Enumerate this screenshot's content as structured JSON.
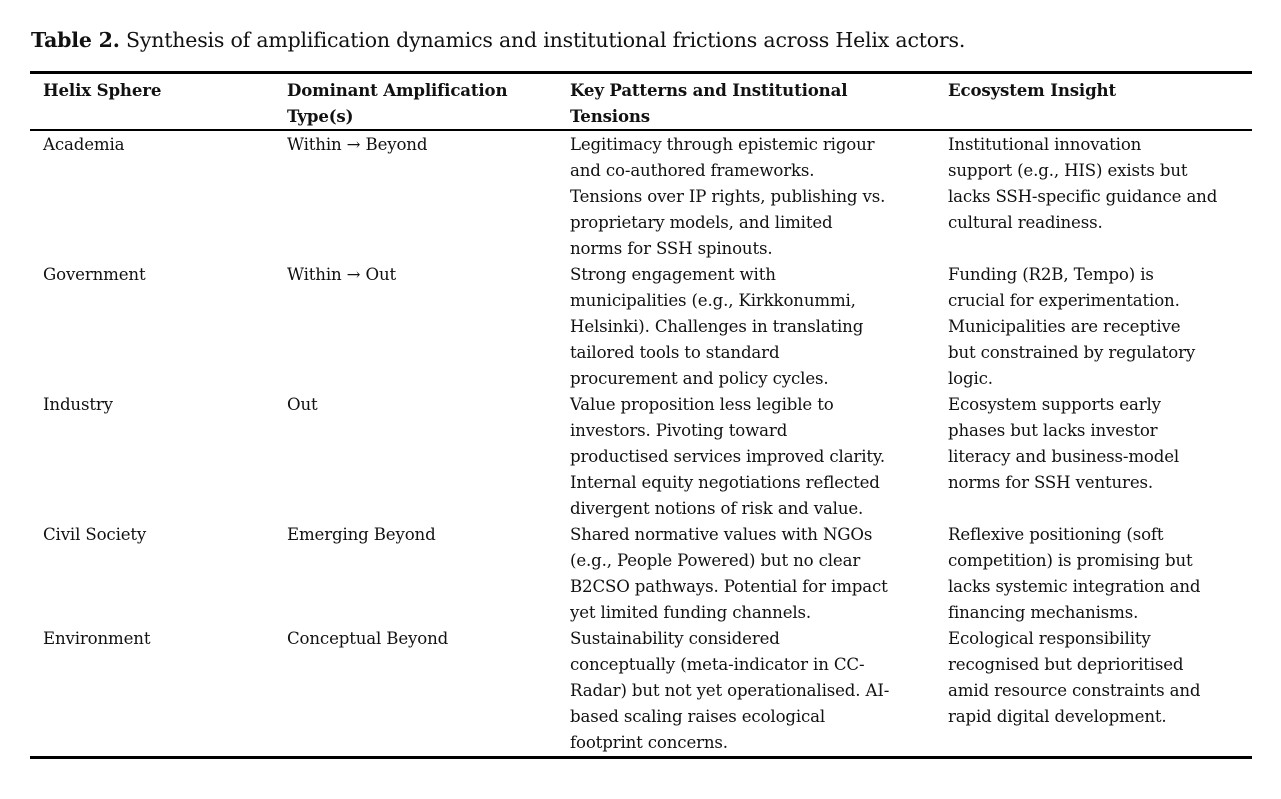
{
  "caption": {
    "label": "Table 2.",
    "text": " Synthesis of amplification dynamics and institutional frictions across Helix actors."
  },
  "table": {
    "headers": [
      "Helix Sphere",
      "Dominant Amplification\nType(s)",
      "Key Patterns and Institutional\nTensions",
      "Ecosystem Insight"
    ],
    "rows": [
      {
        "sphere": "Academia",
        "type": "Within → Beyond",
        "patterns": "Legitimacy through epistemic rigour\nand co-authored frameworks.\nTensions over IP rights, publishing vs.\nproprietary models, and limited\nnorms for SSH spinouts.",
        "insight": "Institutional innovation\nsupport (e.g., HIS) exists but\nlacks SSH-specific guidance and\ncultural readiness."
      },
      {
        "sphere": "Government",
        "type": "Within → Out",
        "patterns": "Strong engagement with\nmunicipalities (e.g., Kirkkonummi,\nHelsinki). Challenges in translating\ntailored tools to standard\nprocurement and policy cycles.",
        "insight": "Funding (R2B, Tempo) is\ncrucial for experimentation.\nMunicipalities are receptive\nbut constrained by regulatory\nlogic."
      },
      {
        "sphere": "Industry",
        "type": "Out",
        "patterns": "Value proposition less legible to\ninvestors. Pivoting toward\nproductised services improved clarity.\nInternal equity negotiations reflected\ndivergent notions of risk and value.",
        "insight": "Ecosystem supports early\nphases but lacks investor\nliteracy and business-model\nnorms for SSH ventures."
      },
      {
        "sphere": "Civil Society",
        "type": "Emerging Beyond",
        "patterns": "Shared normative values with NGOs\n(e.g., People Powered) but no clear\nB2CSO pathways. Potential for impact\nyet limited funding channels.",
        "insight": "Reflexive positioning (soft\ncompetition) is promising but\nlacks systemic integration and\nfinancing mechanisms."
      },
      {
        "sphere": "Environment",
        "type": "Conceptual Beyond",
        "patterns": "Sustainability considered\nconceptually (meta-indicator in CC-\nRadar) but not yet operationalised. AI-\nbased scaling raises ecological\nfootprint concerns.",
        "insight": "Ecological responsibility\nrecognised but deprioritised\namid resource constraints and\nrapid digital development."
      }
    ]
  }
}
